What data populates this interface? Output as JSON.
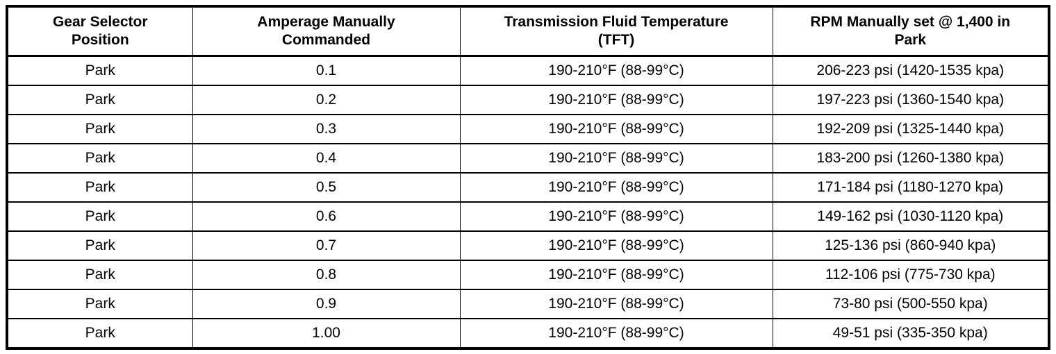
{
  "table": {
    "columns": [
      {
        "label": "Gear Selector Position",
        "label_lines": [
          "Gear Selector",
          "Position"
        ]
      },
      {
        "label": "Amperage Manually Commanded",
        "label_lines": [
          "Amperage Manually",
          "Commanded"
        ]
      },
      {
        "label": "Transmission Fluid Temperature (TFT)",
        "label_lines": [
          "Transmission Fluid Temperature",
          "(TFT)"
        ]
      },
      {
        "label": "RPM Manually set @ 1,400 in Park",
        "label_lines": [
          "RPM Manually set @ 1,400 in",
          "Park"
        ]
      }
    ],
    "rows": [
      [
        "Park",
        "0.1",
        "190-210°F (88-99°C)",
        "206-223 psi (1420-1535 kpa)"
      ],
      [
        "Park",
        "0.2",
        "190-210°F (88-99°C)",
        "197-223 psi (1360-1540 kpa)"
      ],
      [
        "Park",
        "0.3",
        "190-210°F (88-99°C)",
        "192-209 psi (1325-1440 kpa)"
      ],
      [
        "Park",
        "0.4",
        "190-210°F (88-99°C)",
        "183-200 psi (1260-1380 kpa)"
      ],
      [
        "Park",
        "0.5",
        "190-210°F (88-99°C)",
        "171-184 psi (1180-1270 kpa)"
      ],
      [
        "Park",
        "0.6",
        "190-210°F (88-99°C)",
        "149-162 psi (1030-1120 kpa)"
      ],
      [
        "Park",
        "0.7",
        "190-210°F (88-99°C)",
        "125-136 psi (860-940 kpa)"
      ],
      [
        "Park",
        "0.8",
        "190-210°F (88-99°C)",
        "112-106 psi (775-730 kpa)"
      ],
      [
        "Park",
        "0.9",
        "190-210°F (88-99°C)",
        "73-80 psi (500-550 kpa)"
      ],
      [
        "Park",
        "1.00",
        "190-210°F (88-99°C)",
        "49-51 psi (335-350 kpa)"
      ]
    ],
    "colors": {
      "border": "#000000",
      "text": "#000000",
      "background": "#ffffff"
    }
  }
}
